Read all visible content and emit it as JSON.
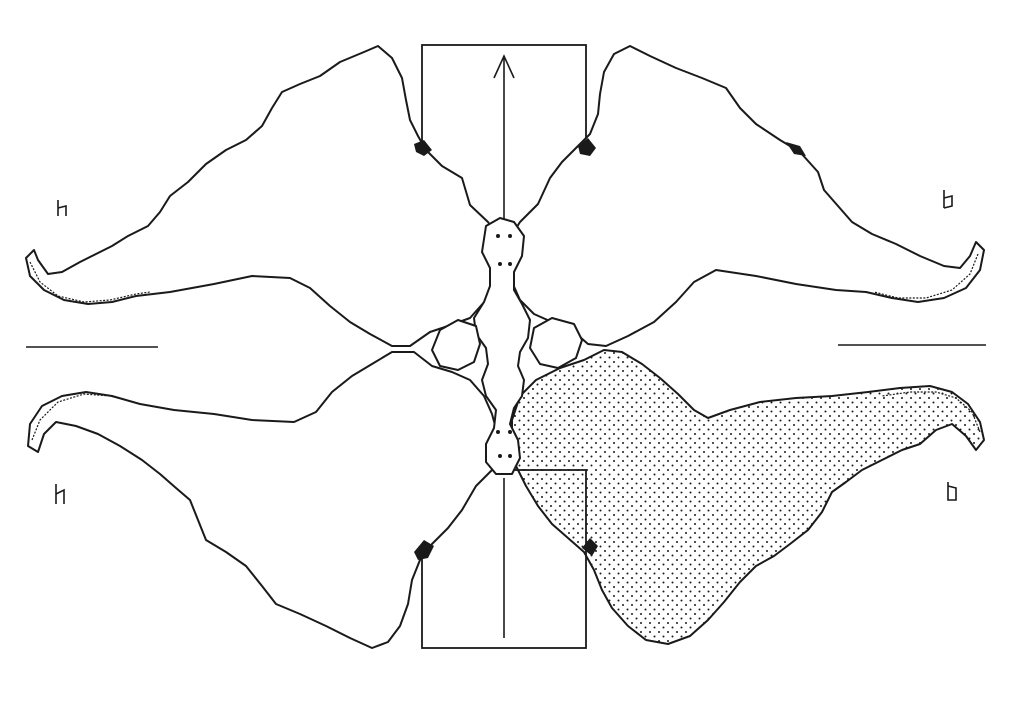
{
  "figure": {
    "corner_labels": {
      "top_left": "",
      "top_right": "",
      "bottom_left": "",
      "bottom_right": ""
    },
    "colors": {
      "ink": "#1a1a1a",
      "paper": "#ffffff"
    },
    "regions": [
      {
        "name": "top-left-lobe",
        "shaded": false
      },
      {
        "name": "top-right-lobe",
        "shaded": false
      },
      {
        "name": "bottom-left-lobe",
        "shaded": false
      },
      {
        "name": "bottom-right-lobe",
        "shaded": true
      }
    ],
    "arrows": [
      {
        "name": "upper-arrow",
        "direction": "up"
      },
      {
        "name": "lower-arrow",
        "direction": "up"
      }
    ]
  }
}
